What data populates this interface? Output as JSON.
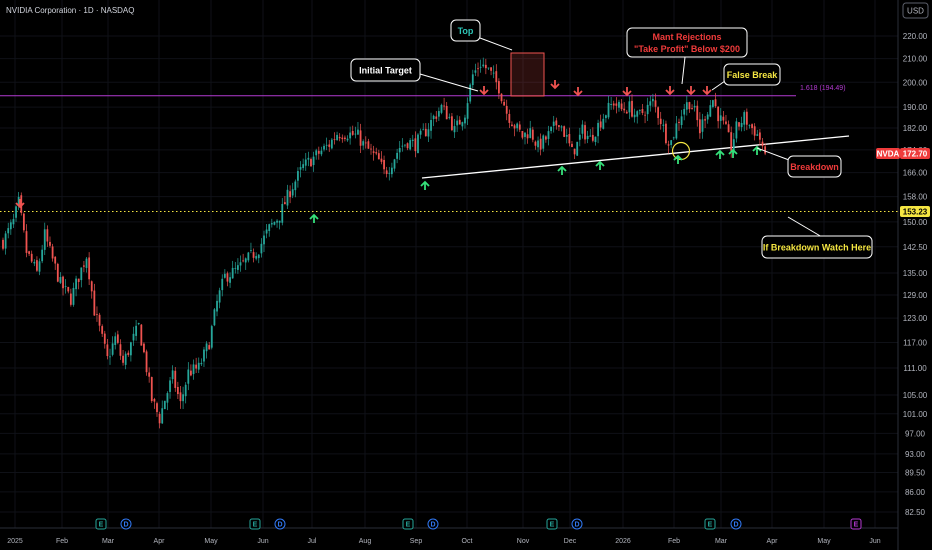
{
  "header": {
    "title": "NVIDIA Corporation · 1D · NASDAQ",
    "currency": "USD"
  },
  "chart_data": {
    "type": "candlestick",
    "yscale": "log",
    "ylim": [
      80,
      228
    ],
    "y_ticks": [
      220,
      210,
      200,
      190,
      182,
      174,
      166,
      158,
      150,
      142.5,
      135,
      129,
      123,
      117,
      111,
      105,
      101,
      97,
      93,
      89.5,
      86,
      82.5
    ],
    "x_ticks": [
      "2025",
      "Feb",
      "Mar",
      "Apr",
      "May",
      "Jun",
      "Jul",
      "Aug",
      "Sep",
      "Oct",
      "Nov",
      "Dec",
      "2026",
      "Feb",
      "Mar",
      "Apr",
      "May",
      "Jun"
    ],
    "anchors": [
      [
        0,
        144
      ],
      [
        4,
        150
      ],
      [
        6,
        156
      ],
      [
        9,
        141
      ],
      [
        13,
        135
      ],
      [
        16,
        146
      ],
      [
        18,
        141
      ],
      [
        22,
        132
      ],
      [
        26,
        128
      ],
      [
        32,
        140
      ],
      [
        35,
        125
      ],
      [
        40,
        113
      ],
      [
        43,
        118
      ],
      [
        46,
        112
      ],
      [
        50,
        118
      ],
      [
        52,
        121
      ],
      [
        55,
        111
      ],
      [
        57,
        104
      ],
      [
        60,
        100
      ],
      [
        62,
        104
      ],
      [
        65,
        109
      ],
      [
        68,
        103
      ],
      [
        71,
        110
      ],
      [
        75,
        111
      ],
      [
        79,
        117
      ],
      [
        82,
        127
      ],
      [
        85,
        134
      ],
      [
        90,
        136
      ],
      [
        94,
        139
      ],
      [
        98,
        142
      ],
      [
        102,
        148
      ],
      [
        106,
        152
      ],
      [
        110,
        160
      ],
      [
        115,
        168
      ],
      [
        120,
        172
      ],
      [
        125,
        176
      ],
      [
        128,
        180
      ],
      [
        132,
        180
      ],
      [
        136,
        179
      ],
      [
        138,
        176
      ],
      [
        141,
        173
      ],
      [
        144,
        170
      ],
      [
        146,
        166
      ],
      [
        148,
        168
      ],
      [
        152,
        175
      ],
      [
        155,
        177
      ],
      [
        158,
        176
      ],
      [
        162,
        181
      ],
      [
        165,
        186
      ],
      [
        168,
        190
      ],
      [
        171,
        186
      ],
      [
        173,
        181
      ],
      [
        177,
        188
      ],
      [
        180,
        203
      ],
      [
        183,
        208
      ],
      [
        186,
        205
      ],
      [
        190,
        198
      ],
      [
        193,
        188
      ],
      [
        196,
        183
      ],
      [
        199,
        179
      ],
      [
        202,
        181
      ],
      [
        205,
        175
      ],
      [
        208,
        178
      ],
      [
        211,
        182
      ],
      [
        213,
        185
      ],
      [
        216,
        178
      ],
      [
        218,
        173
      ],
      [
        220,
        176
      ],
      [
        222,
        181
      ],
      [
        225,
        178
      ],
      [
        228,
        183
      ],
      [
        231,
        188
      ],
      [
        234,
        192
      ],
      [
        237,
        189
      ],
      [
        240,
        190
      ],
      [
        243,
        186
      ],
      [
        246,
        189
      ],
      [
        249,
        192
      ],
      [
        252,
        185
      ],
      [
        254,
        179
      ],
      [
        256,
        177
      ],
      [
        258,
        183
      ],
      [
        261,
        190
      ],
      [
        263,
        192
      ],
      [
        265,
        188
      ],
      [
        267,
        181
      ],
      [
        269,
        187
      ],
      [
        272,
        193
      ],
      [
        274,
        187
      ],
      [
        277,
        181
      ],
      [
        279,
        175
      ],
      [
        281,
        182
      ],
      [
        284,
        186
      ],
      [
        286,
        183
      ],
      [
        288,
        181
      ],
      [
        290,
        178
      ],
      [
        292,
        172.7
      ]
    ],
    "candle_color_up": "#26a69a",
    "candle_color_down": "#ef5350",
    "last_price": 172.7,
    "symbol": "NVDA",
    "fib_level": {
      "label": "1.618 (194.49)",
      "value": 194.49,
      "color": "#b33ad1"
    },
    "support_level": {
      "value": 153.23,
      "label": "153.23",
      "color": "#f5e642"
    },
    "annotations": [
      "Top",
      "Initial Target",
      "Mant Rejections",
      "\"Take Profit\" Below $200",
      "False Break",
      "Breakdown",
      "If Breakdown Watch Here"
    ],
    "events": [
      {
        "kind": "E",
        "x_day": 35
      },
      {
        "kind": "D",
        "x_day": 40
      },
      {
        "kind": "E",
        "x_day": 92
      },
      {
        "kind": "D",
        "x_day": 97
      },
      {
        "kind": "E",
        "x_day": 147
      },
      {
        "kind": "D",
        "x_day": 152
      },
      {
        "kind": "E",
        "x_day": 199
      },
      {
        "kind": "D",
        "x_day": 205
      },
      {
        "kind": "E",
        "x_day": 258
      },
      {
        "kind": "D",
        "x_day": 263
      },
      {
        "kind": "E",
        "x_day": 312,
        "future": true
      }
    ]
  }
}
